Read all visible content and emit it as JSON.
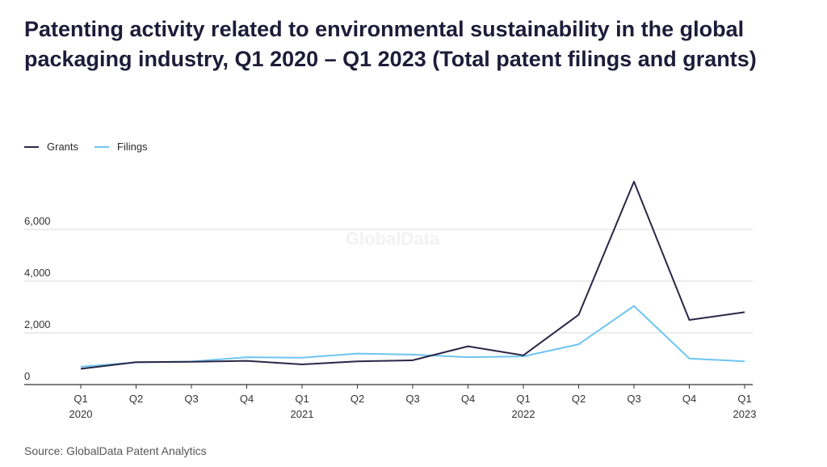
{
  "title": "Patenting activity related to environmental sustainability in the global packaging industry, Q1 2020 – Q1 2023 (Total patent filings and grants)",
  "source": "Source: GlobalData Patent Analytics",
  "watermark": "GlobalData",
  "colors": {
    "grants": "#2b2647",
    "filings": "#6cc5f0",
    "grid": "#d9d9d9",
    "axis": "#333333"
  },
  "chart_data": {
    "type": "line",
    "categories": [
      "Q1\n2020",
      "Q2",
      "Q3",
      "Q4",
      "Q1\n2021",
      "Q2",
      "Q3",
      "Q4",
      "Q1\n2022",
      "Q2",
      "Q3",
      "Q4",
      "Q1\n2023"
    ],
    "series": [
      {
        "name": "Grants",
        "values": [
          610,
          870,
          880,
          920,
          780,
          900,
          940,
          1480,
          1130,
          2700,
          7850,
          2500,
          2800
        ]
      },
      {
        "name": "Filings",
        "values": [
          690,
          860,
          890,
          1060,
          1040,
          1200,
          1160,
          1060,
          1090,
          1560,
          3040,
          1010,
          900
        ]
      }
    ],
    "yticks": [
      0,
      2000,
      4000,
      6000
    ],
    "ytick_labels": [
      "0",
      "2,000",
      "4,000",
      "6,000"
    ],
    "ylim": [
      0,
      8000
    ],
    "legend_position": "top-left",
    "grid": true
  }
}
